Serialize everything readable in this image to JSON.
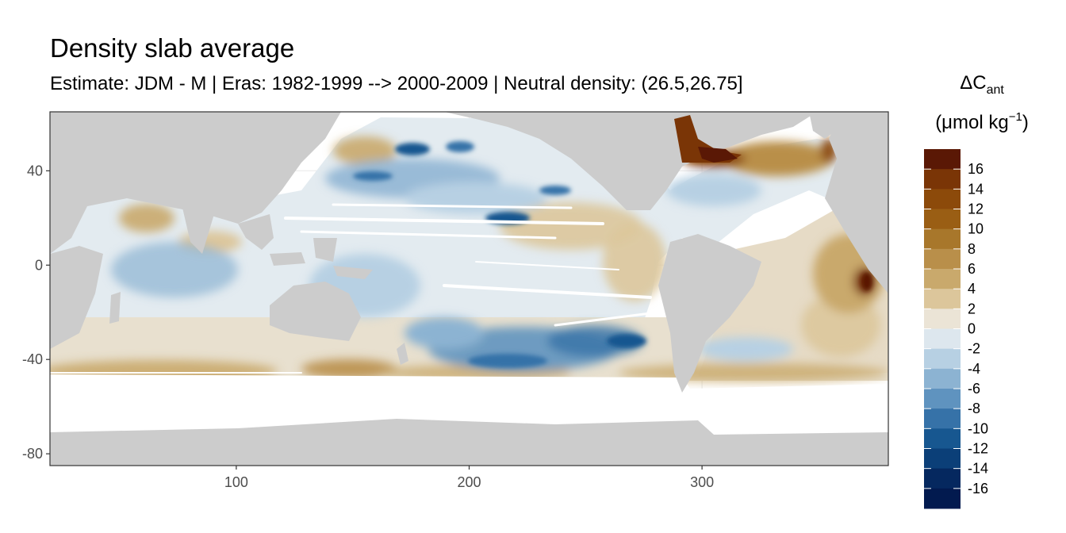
{
  "title": "Density slab average",
  "subtitle": "Estimate: JDM - M | Eras: 1982-1999 --> 2000-2009 | Neutral density: (26.5,26.75]",
  "chart_data": {
    "type": "heatmap",
    "title": "Density slab average",
    "subtitle": "Estimate: JDM - M | Eras: 1982-1999 --> 2000-2009 | Neutral density: (26.5,26.75]",
    "xlabel": "",
    "ylabel": "",
    "xlim": [
      20,
      380
    ],
    "ylim": [
      -85,
      65
    ],
    "x_ticks": [
      100,
      200,
      300
    ],
    "y_ticks": [
      40,
      0,
      -40,
      -80
    ],
    "grid": true,
    "legend": {
      "position": "right",
      "title_main": "ΔC",
      "title_sub": "ant",
      "unit_pre": "(μmol kg",
      "unit_sup": "−1",
      "unit_post": ")",
      "labels": [
        "16",
        "14",
        "12",
        "10",
        "8",
        "6",
        "4",
        "2",
        "0",
        "-2",
        "-4",
        "-6",
        "-8",
        "-10",
        "-12",
        "-14",
        "-16"
      ],
      "colors": [
        "#5a1805",
        "#7a3506",
        "#8c4a0a",
        "#9a5e14",
        "#a8772b",
        "#b98f4a",
        "#c9a96c",
        "#dcc69b",
        "#ebe4d6",
        "#dde7ee",
        "#b7d0e3",
        "#8cb3d2",
        "#5f93bf",
        "#3672a8",
        "#175790",
        "#0b3f78",
        "#05285f",
        "#021a4f"
      ]
    }
  }
}
